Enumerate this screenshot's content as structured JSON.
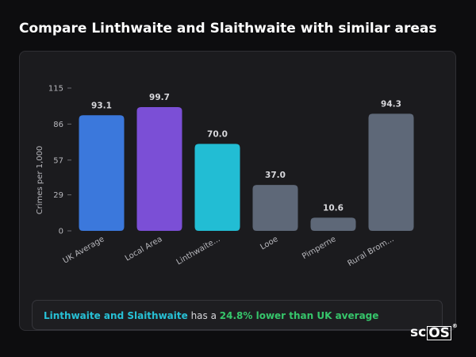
{
  "title": "Compare Linthwaite and Slaithwaite with similar areas",
  "chart_data": {
    "type": "bar",
    "categories": [
      "UK Average",
      "Local Area",
      "Linthwaite...",
      "Looe",
      "Pimperne",
      "Rural Brom..."
    ],
    "values": [
      93.1,
      99.7,
      70.0,
      37.0,
      10.6,
      94.3
    ],
    "value_labels": [
      "93.1",
      "99.7",
      "70.0",
      "37.0",
      "10.6",
      "94.3"
    ],
    "colors": [
      "#3b78dc",
      "#7b4fd6",
      "#22bdd4",
      "#5e6878",
      "#5e6878",
      "#5e6878"
    ],
    "ylabel": "Crimes per 1,000",
    "xlabel": "",
    "ylim": [
      0,
      115
    ],
    "yticks": [
      0,
      29,
      57,
      86,
      115
    ],
    "grid": false,
    "legend": "none"
  },
  "summary": {
    "area_name": "Linthwaite and Slaithwaite",
    "connector": " has a ",
    "comparison": "24.8% lower than UK average"
  },
  "logo": {
    "prefix": "sc",
    "boxed": "OS",
    "mark": "®"
  }
}
